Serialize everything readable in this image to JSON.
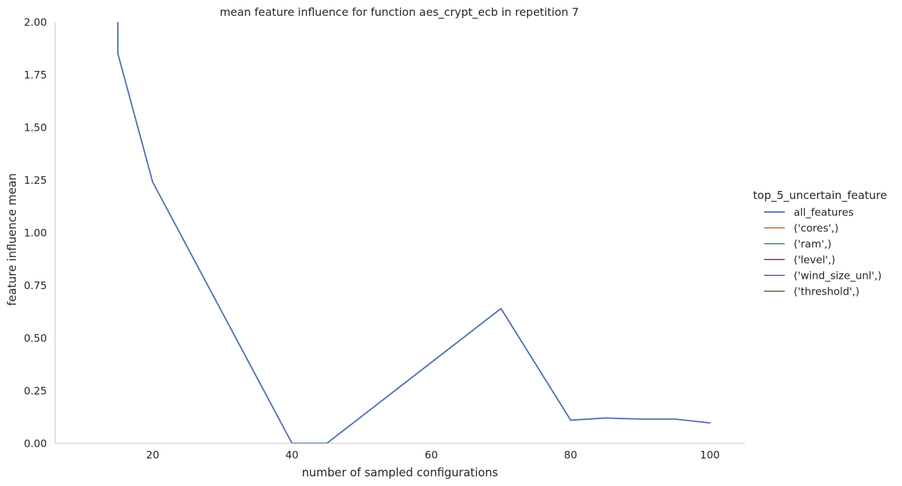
{
  "chart_data": {
    "type": "line",
    "title": "mean feature influence for function aes_crypt_ecb in repetition 7",
    "xlabel": "number of sampled configurations",
    "ylabel": "feature influence mean",
    "xlim": [
      6,
      105
    ],
    "ylim": [
      0,
      2.0
    ],
    "xticks": [
      20,
      40,
      60,
      80,
      100
    ],
    "yticks": [
      0.0,
      0.25,
      0.5,
      0.75,
      1.0,
      1.25,
      1.5,
      1.75,
      2.0
    ],
    "xtick_labels": [
      "20",
      "40",
      "60",
      "80",
      "100"
    ],
    "ytick_labels": [
      "0.00",
      "0.25",
      "0.50",
      "0.75",
      "1.00",
      "1.25",
      "1.50",
      "1.75",
      "2.00"
    ],
    "grid": false,
    "legend": {
      "title": "top_5_uncertain_feature",
      "placement": "right",
      "entries": [
        "all_features",
        "('cores',)",
        "('ram',)",
        "('level',)",
        "('wind_size_unl',)",
        "('threshold',)"
      ]
    },
    "colors": [
      "#4c72b0",
      "#dd8452",
      "#55a868",
      "#c44e52",
      "#8172b3",
      "#937860"
    ],
    "series": [
      {
        "name": "all_features",
        "x": [
          15,
          15,
          20,
          40,
          45,
          70,
          80,
          85,
          90,
          95,
          100
        ],
        "y": [
          2.5,
          1.85,
          1.24,
          0.0,
          0.0,
          0.64,
          0.11,
          0.12,
          0.115,
          0.115,
          0.097
        ]
      }
    ]
  }
}
